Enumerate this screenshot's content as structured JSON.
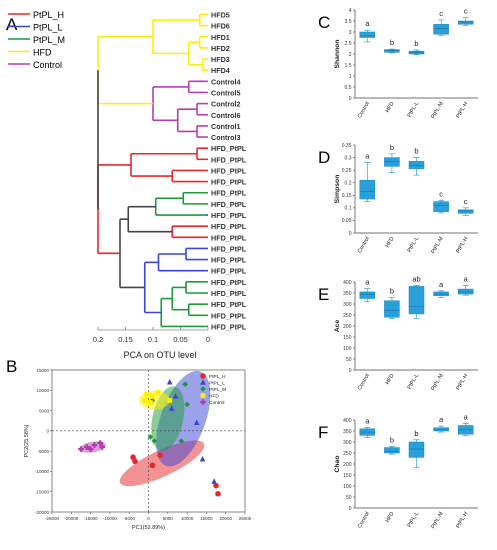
{
  "panel_labels": [
    "A",
    "B",
    "C",
    "D",
    "E",
    "F"
  ],
  "colors": {
    "PtPL_H": "#e8262a",
    "PtPL_L": "#3a45d6",
    "PtPL_M": "#1d9a3a",
    "HFD": "#ffee00",
    "Control": "#b43db4",
    "trunk": "#444444",
    "box": "#29a0da"
  },
  "legend_a": [
    {
      "label": "PtPL_H",
      "key": "PtPL_H"
    },
    {
      "label": "PtPL_L",
      "key": "PtPL_L"
    },
    {
      "label": "PtPL_M",
      "key": "PtPL_M"
    },
    {
      "label": "HFD",
      "key": "HFD"
    },
    {
      "label": "Control",
      "key": "Control"
    }
  ],
  "dendrogram": {
    "leaves": [
      {
        "label": "HFD5",
        "key": "HFD"
      },
      {
        "label": "HFD6",
        "key": "HFD"
      },
      {
        "label": "HFD1",
        "key": "HFD"
      },
      {
        "label": "HFD2",
        "key": "HFD"
      },
      {
        "label": "HFD3",
        "key": "HFD"
      },
      {
        "label": "HFD4",
        "key": "HFD"
      },
      {
        "label": "Control4",
        "key": "Control"
      },
      {
        "label": "Control5",
        "key": "Control"
      },
      {
        "label": "Control2",
        "key": "Control"
      },
      {
        "label": "Control6",
        "key": "Control"
      },
      {
        "label": "Control1",
        "key": "Control"
      },
      {
        "label": "Control3",
        "key": "Control"
      },
      {
        "label": "HFD_PtPL",
        "key": "PtPL_H"
      },
      {
        "label": "HFD_PtPL",
        "key": "PtPL_H"
      },
      {
        "label": "HFD_PtPL",
        "key": "PtPL_H"
      },
      {
        "label": "HFD_PtPL",
        "key": "PtPL_H"
      },
      {
        "label": "HFD_PtPL",
        "key": "PtPL_M"
      },
      {
        "label": "HFD_PtPL",
        "key": "PtPL_M"
      },
      {
        "label": "HFD_PtPL",
        "key": "PtPL_L"
      },
      {
        "label": "HFD_PtPL",
        "key": "PtPL_H"
      },
      {
        "label": "HFD_PtPL",
        "key": "PtPL_H"
      },
      {
        "label": "HFD_PtPL",
        "key": "PtPL_L"
      },
      {
        "label": "HFD_PtPL",
        "key": "PtPL_L"
      },
      {
        "label": "HFD_PtPL",
        "key": "PtPL_L"
      },
      {
        "label": "HFD_PtPL",
        "key": "PtPL_M"
      },
      {
        "label": "HFD_PtPL",
        "key": "PtPL_M"
      },
      {
        "label": "HFD_PtPL",
        "key": "PtPL_M"
      },
      {
        "label": "HFD_PtPL",
        "key": "PtPL_M"
      },
      {
        "label": "HFD_PtPL",
        "key": "PtPL_M"
      }
    ],
    "axis_ticks": [
      "0.2",
      "0.15",
      "0.1",
      "0.05",
      "0"
    ],
    "axis_tick_values": [
      0.2,
      0.15,
      0.1,
      0.05,
      0
    ],
    "caption": "PCA on OTU level"
  },
  "chart_data": [
    {
      "panel": "B",
      "type": "scatter",
      "xlabel": "PC1(52.89%)",
      "ylabel": "PC2(25.58%)",
      "xlim": [
        -25000,
        25000
      ],
      "ylim": [
        -20000,
        15000
      ],
      "xticks": [
        "-25000",
        "-20000",
        "-15000",
        "-10000",
        "-5000",
        "0",
        "5000",
        "10000",
        "15000",
        "20000",
        "25000"
      ],
      "xtick_values": [
        -25000,
        -20000,
        -15000,
        -10000,
        -5000,
        0,
        5000,
        10000,
        15000,
        20000,
        25000
      ],
      "yticks": [
        "15000",
        "10000",
        "5000",
        "0",
        "-5000",
        "-10000",
        "-15000",
        "-20000"
      ],
      "ytick_values": [
        15000,
        10000,
        5000,
        0,
        -5000,
        -10000,
        -15000,
        -20000
      ],
      "legend_position": "top-right",
      "series": [
        {
          "name": "PtPL_H",
          "key": "PtPL_H",
          "marker": "circle",
          "points": [
            [
              -4000,
              -6500
            ],
            [
              -3500,
              -7500
            ],
            [
              3000,
              -6000
            ],
            [
              1000,
              -8500
            ],
            [
              17500,
              -13500
            ],
            [
              18000,
              -15500
            ]
          ],
          "ellipse": {
            "cx": 3500,
            "cy": -8000,
            "rx": 12000,
            "ry": 3200,
            "angle_deg": 25
          }
        },
        {
          "name": "PtPL_L",
          "key": "PtPL_L",
          "marker": "triangle",
          "points": [
            [
              5500,
              12000
            ],
            [
              7000,
              8500
            ],
            [
              6000,
              5500
            ],
            [
              12500,
              2000
            ],
            [
              14000,
              -7000
            ],
            [
              17000,
              -12500
            ]
          ],
          "ellipse": {
            "cx": 9000,
            "cy": 3000,
            "rx": 13000,
            "ry": 5500,
            "angle_deg": 70
          }
        },
        {
          "name": "PtPL_M",
          "key": "PtPL_M",
          "marker": "diamond",
          "points": [
            [
              1000,
              7500
            ],
            [
              500,
              -1500
            ],
            [
              1500,
              -2500
            ],
            [
              8500,
              -2500
            ],
            [
              9500,
              11500
            ],
            [
              10000,
              6500
            ]
          ],
          "ellipse": {
            "cx": 5000,
            "cy": 3000,
            "rx": 8500,
            "ry": 3800,
            "angle_deg": 78
          }
        },
        {
          "name": "HFD",
          "key": "HFD",
          "marker": "square",
          "points": [
            [
              -1000,
              7500
            ],
            [
              -500,
              9000
            ],
            [
              1000,
              8500
            ],
            [
              500,
              7000
            ],
            [
              2500,
              9500
            ],
            [
              5500,
              7500
            ]
          ],
          "ellipse": {
            "cx": 1500,
            "cy": 7500,
            "rx": 4000,
            "ry": 2300,
            "angle_deg": 0
          }
        },
        {
          "name": "Control",
          "key": "Control",
          "marker": "cross",
          "points": [
            [
              -17500,
              -4500
            ],
            [
              -16000,
              -4000
            ],
            [
              -15000,
              -4500
            ],
            [
              -14000,
              -3500
            ],
            [
              -12500,
              -3000
            ],
            [
              -12000,
              -4000
            ]
          ],
          "ellipse": {
            "cx": -14500,
            "cy": -4000,
            "rx": 3500,
            "ry": 1300,
            "angle_deg": 10
          }
        }
      ]
    },
    {
      "panel": "C",
      "type": "box",
      "ylabel": "Shannon",
      "ylim": [
        0,
        4
      ],
      "yticks": [
        "0",
        "0.5",
        "1",
        "1.5",
        "2",
        "2.5",
        "3",
        "3.5",
        "4"
      ],
      "ytick_values": [
        0,
        0.5,
        1,
        1.5,
        2,
        2.5,
        3,
        3.5,
        4
      ],
      "categories": [
        "Control",
        "HFD",
        "PtPL-L",
        "PtPL-M",
        "PtPL-H"
      ],
      "boxes": [
        {
          "min": 2.55,
          "q1": 2.75,
          "median": 2.82,
          "q3": 3.0,
          "max": 3.08,
          "sig": "a"
        },
        {
          "min": 2.05,
          "q1": 2.08,
          "median": 2.15,
          "q3": 2.2,
          "max": 2.22,
          "sig": "b"
        },
        {
          "min": 1.97,
          "q1": 2.0,
          "median": 2.08,
          "q3": 2.13,
          "max": 2.18,
          "sig": "b"
        },
        {
          "min": 2.85,
          "q1": 2.9,
          "median": 3.15,
          "q3": 3.35,
          "max": 3.55,
          "sig": "c"
        },
        {
          "min": 3.3,
          "q1": 3.35,
          "median": 3.45,
          "q3": 3.5,
          "max": 3.65,
          "sig": "c"
        }
      ]
    },
    {
      "panel": "D",
      "type": "box",
      "ylabel": "Simpson",
      "ylim": [
        0,
        0.35
      ],
      "yticks": [
        "0",
        "0.05",
        "0.1",
        "0.15",
        "0.2",
        "0.25",
        "0.3",
        "0.35"
      ],
      "ytick_values": [
        0,
        0.05,
        0.1,
        0.15,
        0.2,
        0.25,
        0.3,
        0.35
      ],
      "categories": [
        "Control",
        "HFD",
        "PtPL-L",
        "PtPL-M",
        "PtPL-H"
      ],
      "boxes": [
        {
          "min": 0.125,
          "q1": 0.135,
          "median": 0.165,
          "q3": 0.21,
          "max": 0.28,
          "sig": "a"
        },
        {
          "min": 0.24,
          "q1": 0.265,
          "median": 0.285,
          "q3": 0.3,
          "max": 0.315,
          "sig": "b"
        },
        {
          "min": 0.23,
          "q1": 0.255,
          "median": 0.268,
          "q3": 0.285,
          "max": 0.3,
          "sig": "b"
        },
        {
          "min": 0.08,
          "q1": 0.085,
          "median": 0.11,
          "q3": 0.125,
          "max": 0.13,
          "sig": "c"
        },
        {
          "min": 0.07,
          "q1": 0.078,
          "median": 0.088,
          "q3": 0.092,
          "max": 0.1,
          "sig": "c"
        }
      ]
    },
    {
      "panel": "E",
      "type": "box",
      "ylabel": "Ace",
      "ylim": [
        0,
        400
      ],
      "yticks": [
        "0",
        "50",
        "100",
        "150",
        "200",
        "250",
        "300",
        "350",
        "400"
      ],
      "ytick_values": [
        0,
        50,
        100,
        150,
        200,
        250,
        300,
        350,
        400
      ],
      "categories": [
        "Control",
        "HFD",
        "PtPL-L",
        "PtPL-M",
        "PtPL-H"
      ],
      "boxes": [
        {
          "min": 310,
          "q1": 325,
          "median": 345,
          "q3": 355,
          "max": 370,
          "sig": "a"
        },
        {
          "min": 235,
          "q1": 240,
          "median": 270,
          "q3": 315,
          "max": 330,
          "sig": "b"
        },
        {
          "min": 235,
          "q1": 255,
          "median": 290,
          "q3": 380,
          "max": 385,
          "sig": "ab"
        },
        {
          "min": 330,
          "q1": 338,
          "median": 345,
          "q3": 355,
          "max": 360,
          "sig": "a"
        },
        {
          "min": 340,
          "q1": 345,
          "median": 355,
          "q3": 368,
          "max": 385,
          "sig": "a"
        }
      ]
    },
    {
      "panel": "F",
      "type": "box",
      "ylabel": "Chao",
      "ylim": [
        0,
        400
      ],
      "yticks": [
        "0",
        "50",
        "100",
        "150",
        "200",
        "250",
        "300",
        "350",
        "400"
      ],
      "ytick_values": [
        0,
        50,
        100,
        150,
        200,
        250,
        300,
        350,
        400
      ],
      "categories": [
        "Control",
        "HFD",
        "PtPL-L",
        "PtPL-M",
        "PtPL-H"
      ],
      "boxes": [
        {
          "min": 320,
          "q1": 330,
          "median": 345,
          "q3": 360,
          "max": 365,
          "sig": "a"
        },
        {
          "min": 245,
          "q1": 250,
          "median": 258,
          "q3": 275,
          "max": 280,
          "sig": "b"
        },
        {
          "min": 185,
          "q1": 230,
          "median": 268,
          "q3": 300,
          "max": 310,
          "sig": "b"
        },
        {
          "min": 345,
          "q1": 350,
          "median": 358,
          "q3": 365,
          "max": 372,
          "sig": "a"
        },
        {
          "min": 330,
          "q1": 335,
          "median": 355,
          "q3": 375,
          "max": 385,
          "sig": "a"
        }
      ]
    }
  ]
}
